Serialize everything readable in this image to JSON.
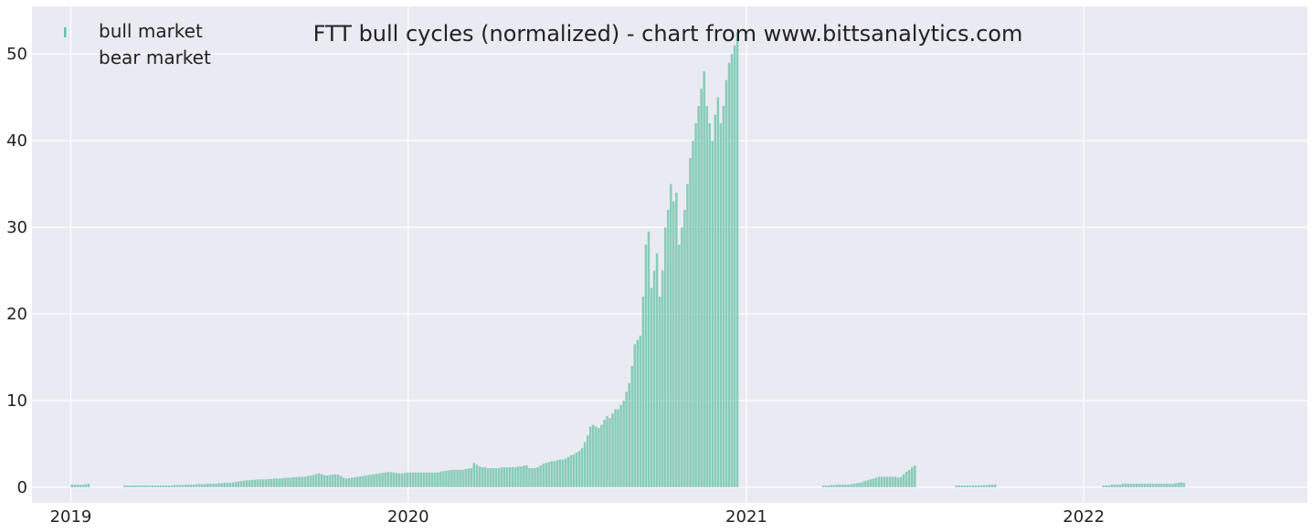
{
  "chart_data": {
    "type": "bar",
    "title": "FTT bull cycles (normalized)  - chart from www.bittsanalytics.com",
    "xlabel": "",
    "ylabel": "",
    "x_range": [
      "2018-11-20",
      "2022-08-31"
    ],
    "ylim": [
      -1.8,
      55.5
    ],
    "x_ticks": [
      "2019",
      "2020",
      "2021",
      "2022"
    ],
    "y_ticks": [
      "0",
      "10",
      "20",
      "30",
      "40",
      "50"
    ],
    "y_tick_values": [
      0,
      10,
      20,
      30,
      40,
      50
    ],
    "grid": true,
    "legend": {
      "position": "top-left",
      "entries": [
        "bull market",
        "bear market"
      ]
    },
    "colors": {
      "background": "#eaeaf2",
      "grid": "#ffffff",
      "bull": "#66c2a5"
    },
    "series": [
      {
        "name": "bull market",
        "start": "2019-01-01",
        "values": [
          0.3,
          0.3,
          0.3,
          0.3,
          0.3,
          0.35,
          0.4,
          0,
          0,
          0,
          0,
          0,
          0,
          0,
          0,
          0,
          0,
          0,
          0,
          0.2,
          0.2,
          0.2,
          0.2,
          0.2,
          0.2,
          0.2,
          0.2,
          0.2,
          0.2,
          0.2,
          0.2,
          0.2,
          0.2,
          0.2,
          0.2,
          0.2,
          0.2,
          0.25,
          0.25,
          0.25,
          0.25,
          0.3,
          0.3,
          0.3,
          0.3,
          0.35,
          0.35,
          0.35,
          0.35,
          0.4,
          0.4,
          0.4,
          0.4,
          0.45,
          0.45,
          0.5,
          0.5,
          0.5,
          0.55,
          0.6,
          0.65,
          0.7,
          0.75,
          0.8,
          0.8,
          0.85,
          0.85,
          0.9,
          0.9,
          0.9,
          0.9,
          0.95,
          0.95,
          1.0,
          1.0,
          1.0,
          1.05,
          1.1,
          1.1,
          1.1,
          1.15,
          1.15,
          1.2,
          1.2,
          1.2,
          1.3,
          1.35,
          1.4,
          1.5,
          1.6,
          1.5,
          1.4,
          1.35,
          1.4,
          1.45,
          1.5,
          1.45,
          1.3,
          1.1,
          1.0,
          1.05,
          1.1,
          1.15,
          1.2,
          1.25,
          1.3,
          1.35,
          1.4,
          1.45,
          1.5,
          1.55,
          1.6,
          1.65,
          1.7,
          1.75,
          1.75,
          1.7,
          1.65,
          1.6,
          1.6,
          1.65,
          1.7,
          1.7,
          1.7,
          1.7,
          1.7,
          1.7,
          1.7,
          1.7,
          1.7,
          1.7,
          1.7,
          1.7,
          1.8,
          1.85,
          1.9,
          1.95,
          2.0,
          2.0,
          2.0,
          2.0,
          2.0,
          2.1,
          2.15,
          2.2,
          2.8,
          2.6,
          2.4,
          2.3,
          2.3,
          2.2,
          2.2,
          2.2,
          2.2,
          2.2,
          2.3,
          2.3,
          2.3,
          2.3,
          2.3,
          2.3,
          2.4,
          2.4,
          2.5,
          2.5,
          2.2,
          2.2,
          2.2,
          2.3,
          2.5,
          2.7,
          2.8,
          2.9,
          3.0,
          3.0,
          3.1,
          3.2,
          3.2,
          3.3,
          3.5,
          3.7,
          3.8,
          4.0,
          4.2,
          4.5,
          5.2,
          6.0,
          7.0,
          7.2,
          7.0,
          6.8,
          7.2,
          7.8,
          8.2,
          8.0,
          8.5,
          9.0,
          9.0,
          9.5,
          10.0,
          11.0,
          12.0,
          14.0,
          16.5,
          17.0,
          17.5,
          22.0,
          28.0,
          29.5,
          23.0,
          25.0,
          27.0,
          22.0,
          25.0,
          30.0,
          32.0,
          35.0,
          33.0,
          34.0,
          28.0,
          30.0,
          32.0,
          35.0,
          38.0,
          40.0,
          42.0,
          44.0,
          46.0,
          48.0,
          44.0,
          42.0,
          40.0,
          43.0,
          45.0,
          42.0,
          44.0,
          47.0,
          49.0,
          50.0,
          51.0,
          52.5,
          0,
          0,
          0,
          0,
          0,
          0,
          0,
          0,
          0,
          0,
          0,
          0,
          0,
          0,
          0,
          0,
          0,
          0,
          0,
          0,
          0,
          0,
          0,
          0,
          0,
          0,
          0,
          0,
          0,
          0,
          0.2,
          0.2,
          0.2,
          0.25,
          0.25,
          0.3,
          0.3,
          0.3,
          0.3,
          0.3,
          0.35,
          0.4,
          0.45,
          0.5,
          0.6,
          0.7,
          0.8,
          0.9,
          1.0,
          1.1,
          1.2,
          1.2,
          1.2,
          1.2,
          1.2,
          1.2,
          1.2,
          1.1,
          1.2,
          1.5,
          1.8,
          2.0,
          2.3,
          2.5,
          0,
          0,
          0,
          0,
          0,
          0,
          0,
          0,
          0,
          0,
          0,
          0,
          0,
          0,
          0.2,
          0.2,
          0.2,
          0.2,
          0.2,
          0.2,
          0.2,
          0.2,
          0.2,
          0.2,
          0.25,
          0.25,
          0.3,
          0.3,
          0.3,
          0,
          0,
          0,
          0,
          0,
          0,
          0,
          0,
          0,
          0,
          0,
          0,
          0,
          0,
          0,
          0,
          0,
          0,
          0,
          0,
          0,
          0,
          0,
          0,
          0,
          0,
          0,
          0,
          0,
          0,
          0,
          0,
          0,
          0,
          0,
          0,
          0,
          0,
          0.2,
          0.2,
          0.2,
          0.3,
          0.3,
          0.3,
          0.3,
          0.4,
          0.4,
          0.4,
          0.4,
          0.4,
          0.4,
          0.4,
          0.4,
          0.4,
          0.4,
          0.4,
          0.4,
          0.4,
          0.4,
          0.4,
          0.4,
          0.4,
          0.4,
          0.4,
          0.45,
          0.5,
          0.55,
          0.5
        ]
      },
      {
        "name": "bear market",
        "values": []
      }
    ]
  }
}
